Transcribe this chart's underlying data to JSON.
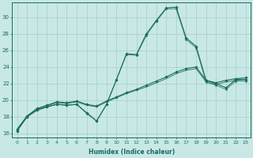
{
  "xlabel": "Humidex (Indice chaleur)",
  "bg_color": "#c8e8e5",
  "grid_color": "#a8cdc9",
  "line_color": "#1a6b5e",
  "xlim": [
    -0.5,
    23.5
  ],
  "ylim": [
    15.5,
    31.8
  ],
  "xticks": [
    0,
    1,
    2,
    3,
    4,
    5,
    6,
    7,
    8,
    9,
    10,
    11,
    12,
    13,
    14,
    15,
    16,
    17,
    18,
    19,
    20,
    21,
    22,
    23
  ],
  "yticks": [
    16,
    18,
    20,
    22,
    24,
    26,
    28,
    30
  ],
  "series": [
    {
      "x": [
        0,
        1,
        2,
        3,
        4,
        5,
        6,
        7,
        8,
        9,
        10,
        11,
        12,
        13,
        14,
        15,
        16,
        17,
        18,
        19,
        20,
        21,
        22,
        23
      ],
      "y": [
        16.3,
        18.0,
        18.8,
        19.2,
        19.5,
        19.4,
        19.5,
        18.5,
        17.5,
        19.5,
        22.5,
        25.6,
        25.5,
        28.0,
        29.6,
        31.1,
        31.2,
        27.5,
        26.5,
        22.4,
        22.0,
        21.5,
        22.5,
        22.5
      ],
      "marker": "D",
      "markersize": 1.8,
      "lw": 0.8,
      "ls": "-",
      "alpha": 1.0
    },
    {
      "x": [
        0,
        1,
        2,
        3,
        4,
        5,
        6,
        7,
        8,
        9,
        10,
        11,
        12,
        13,
        14,
        15,
        16,
        17,
        18,
        19,
        20,
        21,
        22,
        23
      ],
      "y": [
        16.3,
        18.0,
        18.8,
        19.2,
        19.5,
        19.4,
        19.5,
        18.4,
        17.5,
        19.5,
        22.5,
        25.5,
        25.4,
        27.8,
        29.5,
        31.0,
        31.0,
        27.3,
        26.3,
        22.2,
        21.8,
        21.3,
        22.3,
        22.3
      ],
      "marker": "D",
      "markersize": 1.5,
      "lw": 0.7,
      "ls": "-",
      "alpha": 0.75
    },
    {
      "x": [
        0,
        1,
        2,
        3,
        4,
        5,
        6,
        7,
        8,
        9,
        10,
        11,
        12,
        13,
        14,
        15,
        16,
        17,
        18,
        19,
        20,
        21,
        22,
        23
      ],
      "y": [
        16.5,
        18.1,
        19.0,
        19.4,
        19.8,
        19.7,
        19.9,
        19.5,
        19.3,
        19.9,
        20.4,
        20.9,
        21.3,
        21.8,
        22.3,
        22.8,
        23.4,
        23.8,
        24.0,
        22.4,
        22.1,
        22.4,
        22.6,
        22.7
      ],
      "marker": "D",
      "markersize": 1.8,
      "lw": 0.8,
      "ls": "-",
      "alpha": 1.0
    },
    {
      "x": [
        0,
        1,
        2,
        3,
        4,
        5,
        6,
        7,
        8,
        9,
        10,
        11,
        12,
        13,
        14,
        15,
        16,
        17,
        18,
        19,
        20,
        21,
        22,
        23
      ],
      "y": [
        16.4,
        18.0,
        18.9,
        19.3,
        19.7,
        19.6,
        19.8,
        19.4,
        19.2,
        19.8,
        20.3,
        20.8,
        21.2,
        21.6,
        22.1,
        22.6,
        23.2,
        23.6,
        23.8,
        22.2,
        21.9,
        22.2,
        22.4,
        22.5
      ],
      "marker": null,
      "markersize": 0,
      "lw": 0.7,
      "ls": "-",
      "alpha": 0.85
    }
  ]
}
